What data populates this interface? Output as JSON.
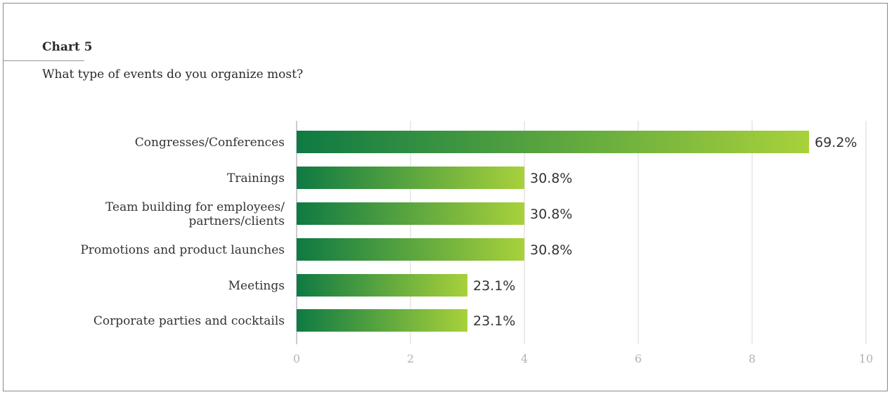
{
  "header": {
    "chart_number": "Chart 5",
    "title": "What type of events do you organize most?"
  },
  "colors": {
    "bar_start": "#0e7a43",
    "bar_end": "#a8d13b",
    "grid": "#d7d7d7",
    "axis": "#999999"
  },
  "chart_data": {
    "type": "bar",
    "orientation": "horizontal",
    "title": "What type of events do you organize most?",
    "categories": [
      [
        "Congresses/Conferences"
      ],
      [
        "Trainings"
      ],
      [
        "Team building for employees/",
        "partners/clients"
      ],
      [
        "Promotions and product launches"
      ],
      [
        "Meetings"
      ],
      [
        "Corporate parties and cocktails"
      ]
    ],
    "values": [
      9,
      4,
      4,
      4,
      3,
      3
    ],
    "data_labels": [
      "69.2%",
      "30.8%",
      "30.8%",
      "30.8%",
      "23.1%",
      "23.1%"
    ],
    "xlim": [
      0,
      10
    ],
    "xticks": [
      0,
      2,
      4,
      6,
      8,
      10
    ],
    "grid": true,
    "legend": "none",
    "xlabel": "",
    "ylabel": ""
  }
}
